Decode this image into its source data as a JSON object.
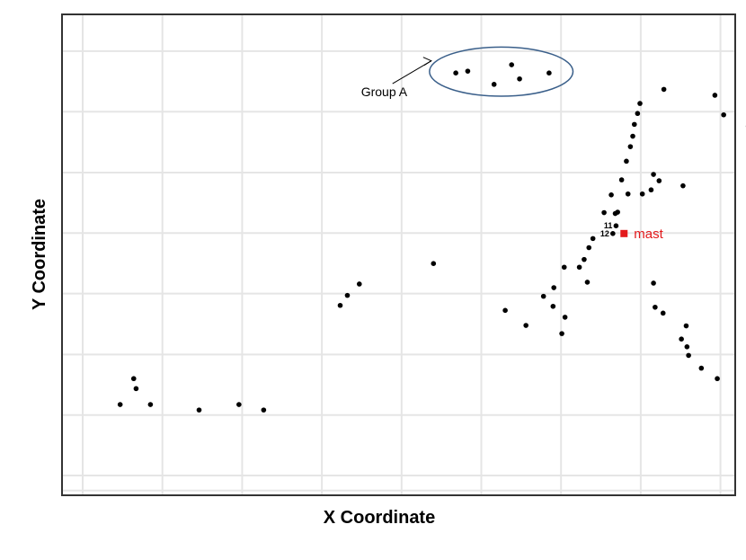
{
  "chart_data": {
    "type": "scatter",
    "xlabel": "X Coordinate",
    "ylabel": "Y Coordinate",
    "xlim": [
      0,
      100
    ],
    "ylim": [
      0,
      100
    ],
    "grid": true,
    "tick_labels_shown": false,
    "colors": {
      "point": "#000000",
      "mast": "#e31a1c",
      "ellipse": "#3a5f8a",
      "grid": "#e5e5e5",
      "frame": "#333333"
    },
    "points": [
      {
        "x": 4.7,
        "y": 15.6
      },
      {
        "x": 6.7,
        "y": 19.1
      },
      {
        "x": 6.4,
        "y": 21.3
      },
      {
        "x": 8.5,
        "y": 15.6
      },
      {
        "x": 14.6,
        "y": 14.4
      },
      {
        "x": 19.6,
        "y": 15.6
      },
      {
        "x": 22.7,
        "y": 14.4
      },
      {
        "x": 32.3,
        "y": 37.4
      },
      {
        "x": 33.2,
        "y": 39.6
      },
      {
        "x": 34.7,
        "y": 42.1
      },
      {
        "x": 44.0,
        "y": 46.6
      },
      {
        "x": 46.8,
        "y": 88.5
      },
      {
        "x": 48.3,
        "y": 88.9
      },
      {
        "x": 51.6,
        "y": 86.0
      },
      {
        "x": 53.8,
        "y": 90.3
      },
      {
        "x": 54.8,
        "y": 87.2
      },
      {
        "x": 58.5,
        "y": 88.5
      },
      {
        "x": 53.0,
        "y": 36.3
      },
      {
        "x": 55.6,
        "y": 33.0
      },
      {
        "x": 57.8,
        "y": 39.4
      },
      {
        "x": 59.0,
        "y": 37.2
      },
      {
        "x": 59.1,
        "y": 41.3
      },
      {
        "x": 60.1,
        "y": 31.2
      },
      {
        "x": 60.5,
        "y": 34.8
      },
      {
        "x": 60.4,
        "y": 45.8
      },
      {
        "x": 62.3,
        "y": 45.8
      },
      {
        "x": 62.9,
        "y": 47.5
      },
      {
        "x": 63.3,
        "y": 42.5
      },
      {
        "x": 63.5,
        "y": 50.1
      },
      {
        "x": 64.0,
        "y": 52.1
      },
      {
        "x": 65.4,
        "y": 57.8
      },
      {
        "x": 66.3,
        "y": 61.7
      },
      {
        "x": 66.8,
        "y": 57.6
      },
      {
        "x": 67.6,
        "y": 65.0
      },
      {
        "x": 67.1,
        "y": 57.9
      },
      {
        "x": 68.2,
        "y": 69.1
      },
      {
        "x": 68.7,
        "y": 72.3
      },
      {
        "x": 69.0,
        "y": 74.6
      },
      {
        "x": 69.2,
        "y": 77.2
      },
      {
        "x": 69.6,
        "y": 79.6
      },
      {
        "x": 69.9,
        "y": 81.8
      },
      {
        "x": 68.4,
        "y": 61.9
      },
      {
        "x": 70.2,
        "y": 61.9
      },
      {
        "x": 71.3,
        "y": 62.8
      },
      {
        "x": 71.6,
        "y": 66.2
      },
      {
        "x": 72.3,
        "y": 64.8
      },
      {
        "x": 72.9,
        "y": 84.9
      },
      {
        "x": 75.3,
        "y": 63.7
      },
      {
        "x": 71.6,
        "y": 42.3
      },
      {
        "x": 71.8,
        "y": 37.0
      },
      {
        "x": 72.8,
        "y": 35.7
      },
      {
        "x": 75.1,
        "y": 30.0
      },
      {
        "x": 75.7,
        "y": 32.9
      },
      {
        "x": 75.8,
        "y": 28.3
      },
      {
        "x": 76.0,
        "y": 26.4
      },
      {
        "x": 77.6,
        "y": 23.6
      },
      {
        "x": 79.6,
        "y": 21.3
      },
      {
        "x": 79.3,
        "y": 83.6
      },
      {
        "x": 80.4,
        "y": 79.3
      },
      {
        "x": 83.5,
        "y": 76.8
      },
      {
        "x": 86.1,
        "y": 75.2
      },
      {
        "x": 84.0,
        "y": 50.8
      },
      {
        "x": 88.3,
        "y": 47.2
      },
      {
        "x": 90.8,
        "y": 43.0
      },
      {
        "x": 92.5,
        "y": 40.4
      },
      {
        "x": 94.3,
        "y": 33.8
      },
      {
        "x": 97.9,
        "y": 31.7
      },
      {
        "x": 102.0,
        "y": 29.2
      }
    ],
    "labeled_points": [
      {
        "x": 66.9,
        "y": 54.9,
        "label": "11"
      },
      {
        "x": 66.5,
        "y": 53.2,
        "label": "12"
      }
    ],
    "mast": {
      "x": 67.9,
      "y": 53.2,
      "label": "mast"
    },
    "group_a": {
      "cx": 52.5,
      "cy": 88.8,
      "rx": 9.0,
      "ry": 5.4,
      "label": "Group A",
      "label_x": 38.3,
      "label_y": 82.8
    }
  }
}
